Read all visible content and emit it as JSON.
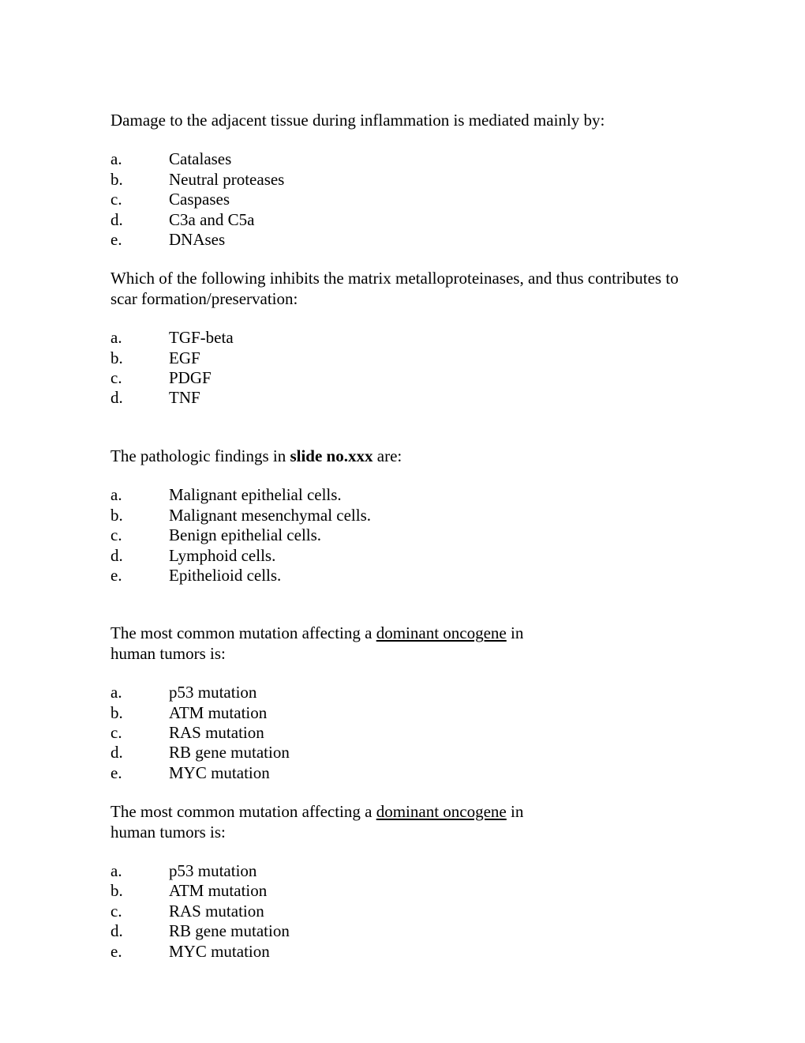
{
  "questions": [
    {
      "stem_pre": "Damage to the adjacent tissue during inflammation is mediated mainly by:",
      "options": [
        {
          "letter": "a.",
          "text": "Catalases"
        },
        {
          "letter": "b.",
          "text": "Neutral proteases"
        },
        {
          "letter": "c.",
          "text": "Caspases"
        },
        {
          "letter": "d.",
          "text": "C3a and C5a"
        },
        {
          "letter": "e.",
          "text": "DNAses"
        }
      ]
    },
    {
      "stem_pre": "Which of the following inhibits the matrix metalloproteinases, and thus contributes to scar formation/preservation:",
      "options": [
        {
          "letter": "a.",
          "text": "TGF-beta"
        },
        {
          "letter": "b.",
          "text": "EGF"
        },
        {
          "letter": "c.",
          "text": "PDGF"
        },
        {
          "letter": "d.",
          "text": "TNF"
        }
      ]
    },
    {
      "stem_pre": "The pathologic findings in ",
      "stem_bold": "slide no.xxx",
      "stem_post": " are:",
      "options": [
        {
          "letter": "a.",
          "text": "Malignant epithelial cells."
        },
        {
          "letter": "b.",
          "text": "Malignant mesenchymal cells."
        },
        {
          "letter": "c.",
          "text": "Benign epithelial cells."
        },
        {
          "letter": "d.",
          "text": "Lymphoid cells."
        },
        {
          "letter": "e.",
          "text": "Epithelioid cells."
        }
      ]
    },
    {
      "stem_pre": "The most common mutation affecting a ",
      "stem_underline": "dominant oncogene",
      "stem_post": " in human tumors is:",
      "options": [
        {
          "letter": "a.",
          "text": "p53 mutation"
        },
        {
          "letter": "b.",
          "text": "ATM mutation"
        },
        {
          "letter": "c.",
          "text": "RAS mutation"
        },
        {
          "letter": "d.",
          "text": "RB gene mutation"
        },
        {
          "letter": "e.",
          "text": "MYC mutation"
        }
      ]
    },
    {
      "stem_pre": "The most common mutation affecting a ",
      "stem_underline": "dominant oncogene",
      "stem_post": " in human tumors is:",
      "options": [
        {
          "letter": "a.",
          "text": "p53 mutation"
        },
        {
          "letter": "b.",
          "text": "ATM mutation"
        },
        {
          "letter": "c.",
          "text": "RAS mutation"
        },
        {
          "letter": "d.",
          "text": "RB gene mutation"
        },
        {
          "letter": "e.",
          "text": "MYC mutation"
        }
      ]
    }
  ]
}
